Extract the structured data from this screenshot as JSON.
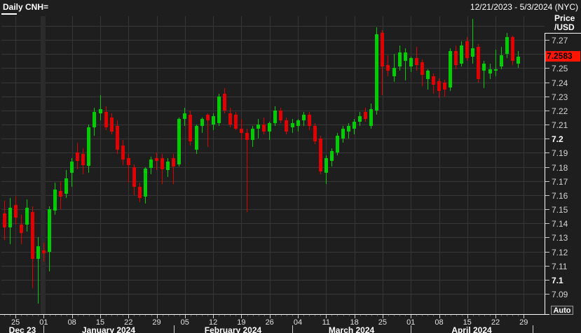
{
  "header": {
    "title": "Daily CNH=",
    "date_range": "12/21/2023 - 5/3/2024 (NYC)"
  },
  "price_axis": {
    "unit_line1": "Price",
    "unit_line2": "/USD",
    "auto_label": "Auto",
    "last_price": "7.2583",
    "last_price_color": "#ff1500",
    "tick_values": [
      7.27,
      7.25,
      7.24,
      7.23,
      7.22,
      7.21,
      7.2,
      7.19,
      7.18,
      7.17,
      7.16,
      7.15,
      7.14,
      7.13,
      7.12,
      7.11,
      7.1,
      7.09
    ],
    "bold_ticks": [
      "7.2",
      "7.1"
    ]
  },
  "time_axis": {
    "week_labels": [
      "25",
      "01",
      "08",
      "15",
      "22",
      "29",
      "05",
      "12",
      "19",
      "26",
      "04",
      "11",
      "18",
      "25",
      "01",
      "08",
      "15",
      "22",
      "29"
    ],
    "month_labels": [
      "Dec 23",
      "January 2024",
      "February 2024",
      "March 2024",
      "April 2024"
    ]
  },
  "chart_data": {
    "type": "candlestick",
    "symbol": "CNH=",
    "interval": "Daily",
    "title": "Daily CNH=",
    "date_range": "12/21/2023 - 5/3/2024 (NYC)",
    "ylabel": "Price /USD",
    "ylim": [
      7.08,
      7.285
    ],
    "grid": true,
    "up_color": "#00cc00",
    "down_color": "#e00000",
    "last_price": 7.2583,
    "candles_ohlc": [
      [
        7.147,
        7.156,
        7.128,
        7.137
      ],
      [
        7.137,
        7.158,
        7.125,
        7.151
      ],
      [
        7.153,
        7.159,
        7.139,
        7.144
      ],
      [
        7.139,
        7.146,
        7.125,
        7.133
      ],
      [
        7.139,
        7.157,
        7.134,
        7.151
      ],
      [
        7.148,
        7.152,
        7.094,
        7.115
      ],
      [
        7.115,
        7.13,
        7.083,
        7.124
      ],
      [
        7.121,
        7.126,
        7.113,
        7.119
      ],
      [
        7.12,
        7.152,
        7.106,
        7.15
      ],
      [
        7.149,
        7.169,
        7.146,
        7.164
      ],
      [
        7.163,
        7.17,
        7.15,
        7.159
      ],
      [
        7.161,
        7.178,
        7.158,
        7.172
      ],
      [
        7.176,
        7.186,
        7.166,
        7.184
      ],
      [
        7.19,
        7.197,
        7.178,
        7.184
      ],
      [
        7.189,
        7.193,
        7.175,
        7.181
      ],
      [
        7.181,
        7.21,
        7.176,
        7.208
      ],
      [
        7.208,
        7.222,
        7.202,
        7.219
      ],
      [
        7.218,
        7.231,
        7.213,
        7.221
      ],
      [
        7.219,
        7.223,
        7.206,
        7.208
      ],
      [
        7.215,
        7.218,
        7.203,
        7.205
      ],
      [
        7.209,
        7.213,
        7.189,
        7.192
      ],
      [
        7.195,
        7.199,
        7.181,
        7.185
      ],
      [
        7.186,
        7.189,
        7.169,
        7.181
      ],
      [
        7.18,
        7.182,
        7.16,
        7.166
      ],
      [
        7.166,
        7.169,
        7.155,
        7.158
      ],
      [
        7.159,
        7.18,
        7.154,
        7.179
      ],
      [
        7.179,
        7.187,
        7.175,
        7.185
      ],
      [
        7.186,
        7.19,
        7.178,
        7.184
      ],
      [
        7.186,
        7.189,
        7.168,
        7.178
      ],
      [
        7.178,
        7.186,
        7.173,
        7.184
      ],
      [
        7.186,
        7.189,
        7.168,
        7.18
      ],
      [
        7.182,
        7.215,
        7.18,
        7.214
      ],
      [
        7.214,
        7.222,
        7.209,
        7.218
      ],
      [
        7.217,
        7.22,
        7.195,
        7.198
      ],
      [
        7.192,
        7.21,
        7.189,
        7.209
      ],
      [
        7.209,
        7.215,
        7.204,
        7.214
      ],
      [
        7.217,
        7.218,
        7.194,
        7.213
      ],
      [
        7.21,
        7.218,
        7.206,
        7.216
      ],
      [
        7.211,
        7.232,
        7.209,
        7.23
      ],
      [
        7.232,
        7.236,
        7.218,
        7.22
      ],
      [
        7.218,
        7.222,
        7.208,
        7.21
      ],
      [
        7.217,
        7.219,
        7.206,
        7.207
      ],
      [
        7.207,
        7.214,
        7.199,
        7.204
      ],
      [
        7.204,
        7.207,
        7.148,
        7.199
      ],
      [
        7.199,
        7.209,
        7.194,
        7.207
      ],
      [
        7.207,
        7.214,
        7.2,
        7.21
      ],
      [
        7.21,
        7.215,
        7.203,
        7.205
      ],
      [
        7.205,
        7.212,
        7.199,
        7.211
      ],
      [
        7.211,
        7.223,
        7.209,
        7.22
      ],
      [
        7.22,
        7.222,
        7.211,
        7.213
      ],
      [
        7.213,
        7.215,
        7.203,
        7.205
      ],
      [
        7.208,
        7.214,
        7.204,
        7.211
      ],
      [
        7.209,
        7.214,
        7.205,
        7.213
      ],
      [
        7.213,
        7.219,
        7.209,
        7.217
      ],
      [
        7.217,
        7.219,
        7.206,
        7.209
      ],
      [
        7.209,
        7.211,
        7.196,
        7.198
      ],
      [
        7.2,
        7.202,
        7.175,
        7.177
      ],
      [
        7.176,
        7.188,
        7.168,
        7.186
      ],
      [
        7.184,
        7.193,
        7.18,
        7.191
      ],
      [
        7.19,
        7.204,
        7.188,
        7.202
      ],
      [
        7.2,
        7.209,
        7.197,
        7.207
      ],
      [
        7.205,
        7.211,
        7.2,
        7.209
      ],
      [
        7.207,
        7.214,
        7.203,
        7.212
      ],
      [
        7.212,
        7.219,
        7.209,
        7.216
      ],
      [
        7.219,
        7.222,
        7.212,
        7.214
      ],
      [
        7.209,
        7.225,
        7.207,
        7.221
      ],
      [
        7.22,
        7.279,
        7.217,
        7.274
      ],
      [
        7.275,
        7.277,
        7.231,
        7.251
      ],
      [
        7.252,
        7.259,
        7.244,
        7.248
      ],
      [
        7.244,
        7.26,
        7.24,
        7.25
      ],
      [
        7.251,
        7.266,
        7.248,
        7.261
      ],
      [
        7.255,
        7.264,
        7.241,
        7.261
      ],
      [
        7.251,
        7.258,
        7.247,
        7.257
      ],
      [
        7.257,
        7.265,
        7.248,
        7.252
      ],
      [
        7.254,
        7.256,
        7.237,
        7.245
      ],
      [
        7.242,
        7.249,
        7.235,
        7.248
      ],
      [
        7.244,
        7.246,
        7.232,
        7.238
      ],
      [
        7.241,
        7.243,
        7.229,
        7.234
      ],
      [
        7.24,
        7.242,
        7.23,
        7.235
      ],
      [
        7.236,
        7.264,
        7.234,
        7.262
      ],
      [
        7.262,
        7.266,
        7.249,
        7.252
      ],
      [
        7.253,
        7.269,
        7.251,
        7.266
      ],
      [
        7.269,
        7.272,
        7.255,
        7.257
      ],
      [
        7.258,
        7.285,
        7.253,
        7.264
      ],
      [
        7.265,
        7.267,
        7.24,
        7.242
      ],
      [
        7.248,
        7.255,
        7.236,
        7.253
      ],
      [
        7.246,
        7.253,
        7.242,
        7.249
      ],
      [
        7.248,
        7.263,
        7.244,
        7.249
      ],
      [
        7.251,
        7.265,
        7.249,
        7.259
      ],
      [
        7.26,
        7.275,
        7.257,
        7.272
      ],
      [
        7.272,
        7.273,
        7.252,
        7.255
      ],
      [
        7.253,
        7.262,
        7.25,
        7.2583
      ]
    ]
  }
}
